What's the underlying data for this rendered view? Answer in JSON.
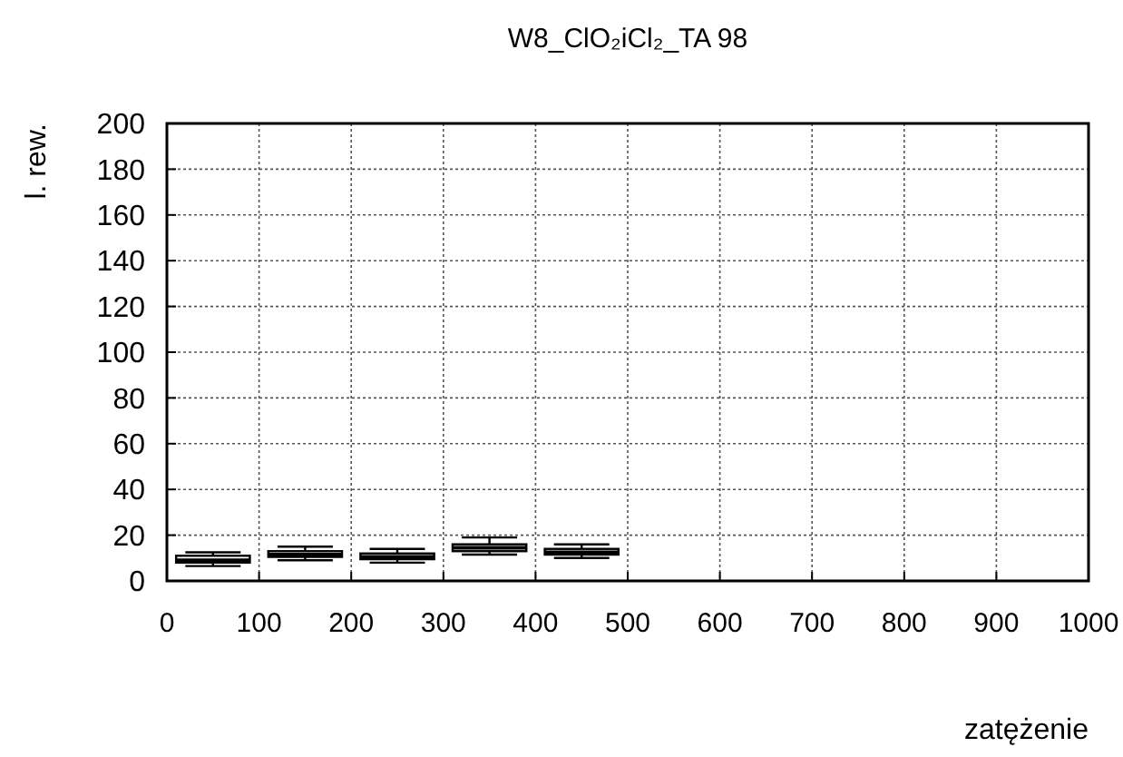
{
  "chart_data": {
    "type": "box",
    "title": "W8_ClO₂iCl₂_TA 98",
    "xlabel": "zatężenie",
    "ylabel": "l. rew.",
    "x": [
      50,
      150,
      250,
      350,
      450
    ],
    "boxes": [
      {
        "low": 6.5,
        "q1": 8,
        "median": 9,
        "q3": 11,
        "high": 12.5
      },
      {
        "low": 9,
        "q1": 10.5,
        "median": 11.5,
        "q3": 13,
        "high": 15
      },
      {
        "low": 8,
        "q1": 9.5,
        "median": 10.5,
        "q3": 12,
        "high": 14
      },
      {
        "low": 11.5,
        "q1": 13,
        "median": 14.5,
        "q3": 16,
        "high": 19
      },
      {
        "low": 10,
        "q1": 11.5,
        "median": 12.5,
        "q3": 14,
        "high": 16
      }
    ],
    "xlim": [
      0,
      1000
    ],
    "xticks": [
      0,
      100,
      200,
      300,
      400,
      500,
      600,
      700,
      800,
      900,
      1000
    ],
    "ylim": [
      0,
      200
    ],
    "yticks": [
      0,
      20,
      40,
      60,
      80,
      100,
      120,
      140,
      160,
      180,
      200
    ],
    "grid": true
  }
}
